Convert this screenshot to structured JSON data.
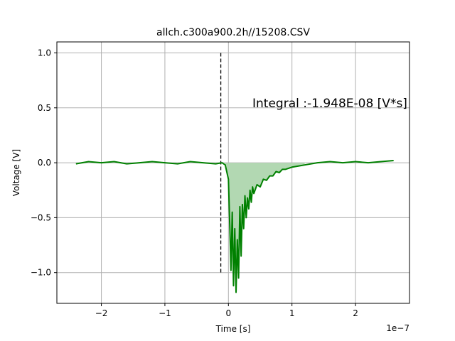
{
  "chart_data": {
    "type": "line",
    "title": "allch.c300a900.2h//15208.CSV",
    "xlabel": "Time [s]",
    "ylabel": "Voltage [V]",
    "x_offset_label": "1e−7",
    "xlim": [
      -2.7,
      2.85
    ],
    "ylim": [
      -1.28,
      1.1
    ],
    "x_scale": 1e-07,
    "x_ticks": [
      -2,
      -1,
      0,
      1,
      2
    ],
    "x_tick_labels": [
      "−2",
      "−1",
      "0",
      "1",
      "2"
    ],
    "y_ticks": [
      -1.0,
      -0.5,
      0.0,
      0.5,
      1.0
    ],
    "y_tick_labels": [
      "−1.0",
      "−0.5",
      "0.0",
      "0.5",
      "1.0"
    ],
    "grid": true,
    "annotation": "Integral :-1.948E-08 [V*s]",
    "colors": {
      "line": "#008000",
      "fill": "#b2d8b2",
      "vline": "#000000",
      "grid": "#b0b0b0"
    },
    "vline": {
      "x": -0.12,
      "y_range": [
        -1.0,
        1.0
      ],
      "style": "dashed"
    },
    "integration_window": [
      -0.05,
      1.25
    ],
    "series": [
      {
        "x": [
          -2.4,
          -2.2,
          -2.0,
          -1.8,
          -1.6,
          -1.4,
          -1.2,
          -1.0,
          -0.8,
          -0.6,
          -0.4,
          -0.2,
          -0.1,
          -0.05,
          0.0,
          0.02,
          0.04,
          0.06,
          0.08,
          0.1,
          0.12,
          0.14,
          0.16,
          0.18,
          0.2,
          0.22,
          0.24,
          0.26,
          0.28,
          0.3,
          0.32,
          0.34,
          0.36,
          0.38,
          0.4,
          0.45,
          0.5,
          0.55,
          0.6,
          0.65,
          0.7,
          0.75,
          0.8,
          0.85,
          0.9,
          0.95,
          1.0,
          1.1,
          1.2,
          1.3,
          1.4,
          1.6,
          1.8,
          2.0,
          2.2,
          2.4,
          2.6
        ],
        "y": [
          -0.01,
          0.01,
          0.0,
          0.01,
          -0.01,
          0.0,
          0.01,
          0.0,
          -0.01,
          0.01,
          0.0,
          -0.01,
          0.0,
          -0.02,
          -0.15,
          -0.55,
          -0.98,
          -0.45,
          -1.12,
          -0.6,
          -1.18,
          -0.7,
          -1.05,
          -0.4,
          -0.85,
          -0.38,
          -0.6,
          -0.3,
          -0.5,
          -0.32,
          -0.42,
          -0.25,
          -0.36,
          -0.22,
          -0.28,
          -0.2,
          -0.22,
          -0.15,
          -0.16,
          -0.12,
          -0.12,
          -0.08,
          -0.09,
          -0.06,
          -0.06,
          -0.05,
          -0.04,
          -0.03,
          -0.02,
          -0.01,
          0.0,
          0.01,
          0.0,
          0.01,
          0.0,
          0.01,
          0.02
        ]
      }
    ]
  }
}
